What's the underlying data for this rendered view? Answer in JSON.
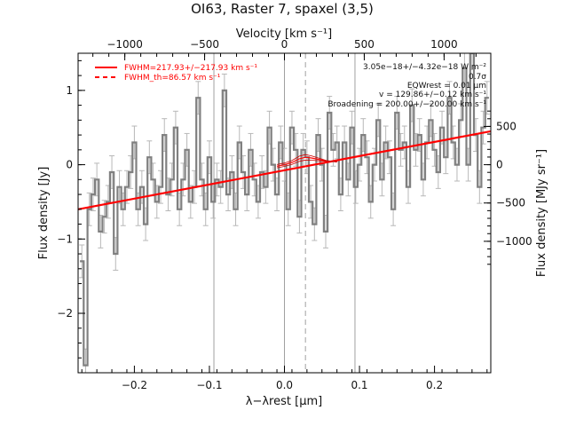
{
  "chart_data": {
    "type": "line",
    "title": "OI63, Raster 7, spaxel (3,5)",
    "xlabel": "λ−λrest [μm]",
    "ylabel_left": "Flux density [Jy]",
    "ylabel_right": "Flux density [MJy sr⁻¹]",
    "xlabel_top": "Velocity [km s⁻¹]",
    "xlim": [
      -0.275,
      0.275
    ],
    "ylim": [
      -2.8,
      1.5
    ],
    "x_ticks": [
      -0.2,
      -0.1,
      0.0,
      0.1,
      0.2
    ],
    "x_tick_labels": [
      "−0.2",
      "−0.1",
      "0.0",
      "0.1",
      "0.2"
    ],
    "y_ticks": [
      -2,
      -1,
      0,
      1
    ],
    "y_tick_labels": [
      "−2",
      "−1",
      "0",
      "1"
    ],
    "top_ticks": [
      -1000,
      -500,
      0,
      500,
      1000
    ],
    "top_tick_labels": [
      "−1000",
      "−500",
      "0",
      "500",
      "1000"
    ],
    "right_ticks": [
      500,
      0,
      -500,
      -1000
    ],
    "right_tick_labels": [
      "500",
      "0",
      "−500",
      "−1000"
    ],
    "vertical_lines": [
      {
        "x": -0.094,
        "style": "solid"
      },
      {
        "x": 0.0,
        "style": "solid"
      },
      {
        "x": 0.028,
        "style": "dashed"
      },
      {
        "x": 0.094,
        "style": "solid"
      }
    ],
    "legend": [
      {
        "label": "FWHM=217.93+/−217.93 km s⁻¹",
        "style": "solid",
        "color": "#ff0000"
      },
      {
        "label": "FWHM_th=86.57 km s⁻¹",
        "style": "dashed",
        "color": "#ff0000"
      }
    ],
    "annotations": [
      "3.05e−18+/−4.32e−18 W m⁻²",
      "0.7σ",
      "EQWrest = 0.01 μm",
      "v = 129.86+/−0.12 km s⁻¹",
      "Broadening = 200.00+/−200.00 km s⁻¹"
    ],
    "series": [
      {
        "kind": "spectrum-step",
        "color": "#808080",
        "x": [
          -0.27,
          -0.265,
          -0.26,
          -0.255,
          -0.25,
          -0.245,
          -0.24,
          -0.235,
          -0.23,
          -0.225,
          -0.22,
          -0.215,
          -0.21,
          -0.205,
          -0.2,
          -0.195,
          -0.19,
          -0.185,
          -0.18,
          -0.175,
          -0.17,
          -0.165,
          -0.16,
          -0.155,
          -0.15,
          -0.145,
          -0.14,
          -0.135,
          -0.13,
          -0.125,
          -0.12,
          -0.115,
          -0.11,
          -0.105,
          -0.1,
          -0.095,
          -0.09,
          -0.085,
          -0.08,
          -0.075,
          -0.07,
          -0.065,
          -0.06,
          -0.055,
          -0.05,
          -0.045,
          -0.04,
          -0.035,
          -0.03,
          -0.025,
          -0.02,
          -0.015,
          -0.01,
          -0.005,
          0.0,
          0.005,
          0.01,
          0.015,
          0.02,
          0.025,
          0.03,
          0.035,
          0.04,
          0.045,
          0.05,
          0.055,
          0.06,
          0.065,
          0.07,
          0.075,
          0.08,
          0.085,
          0.09,
          0.095,
          0.1,
          0.105,
          0.11,
          0.115,
          0.12,
          0.125,
          0.13,
          0.135,
          0.14,
          0.145,
          0.15,
          0.155,
          0.16,
          0.165,
          0.17,
          0.175,
          0.18,
          0.185,
          0.19,
          0.195,
          0.2,
          0.205,
          0.21,
          0.215,
          0.22,
          0.225,
          0.23,
          0.235,
          0.24,
          0.245,
          0.25,
          0.255,
          0.26,
          0.265,
          0.27
        ],
        "y": [
          -1.3,
          -2.7,
          -0.6,
          -0.4,
          -0.2,
          -0.9,
          -0.7,
          -0.5,
          -0.1,
          -1.2,
          -0.3,
          -0.6,
          -0.3,
          -0.1,
          0.3,
          -0.6,
          -0.3,
          -0.8,
          0.1,
          -0.2,
          -0.5,
          -0.3,
          0.4,
          -0.4,
          -0.2,
          0.5,
          -0.6,
          -0.2,
          0.2,
          -0.5,
          -0.3,
          0.9,
          -0.2,
          -0.6,
          0.1,
          -0.5,
          -0.2,
          -0.3,
          1.0,
          -0.4,
          -0.1,
          -0.6,
          0.3,
          -0.1,
          -0.4,
          0.2,
          -0.2,
          -0.5,
          -0.1,
          -0.3,
          0.5,
          0.0,
          -0.4,
          0.3,
          0.0,
          -0.6,
          0.5,
          0.2,
          -0.7,
          0.2,
          0.1,
          -0.5,
          -0.8,
          0.4,
          0.0,
          -0.9,
          0.7,
          0.2,
          0.3,
          -0.4,
          0.3,
          -0.2,
          0.5,
          -0.3,
          0.0,
          0.4,
          0.1,
          -0.5,
          0.0,
          0.6,
          -0.2,
          0.3,
          0.1,
          -0.6,
          0.7,
          0.2,
          0.3,
          -0.3,
          0.8,
          0.2,
          0.4,
          -0.2,
          0.3,
          0.6,
          0.2,
          -0.1,
          0.5,
          0.1,
          0.9,
          0.3,
          0.0,
          0.6,
          1.3,
          0.0,
          1.5,
          0.4,
          -0.3,
          0.5,
          0.9
        ]
      },
      {
        "kind": "continuum-fit",
        "color": "#ff0000",
        "x": [
          -0.275,
          0.275
        ],
        "y": [
          -0.6,
          0.45
        ]
      },
      {
        "kind": "line-fit",
        "color": "#ff0000",
        "x": [
          -0.01,
          0.0,
          0.01,
          0.02,
          0.028,
          0.036,
          0.046,
          0.056,
          0.07
        ],
        "y": [
          -0.02,
          0.0,
          0.03,
          0.08,
          0.1,
          0.09,
          0.07,
          0.05,
          0.04
        ]
      }
    ]
  }
}
